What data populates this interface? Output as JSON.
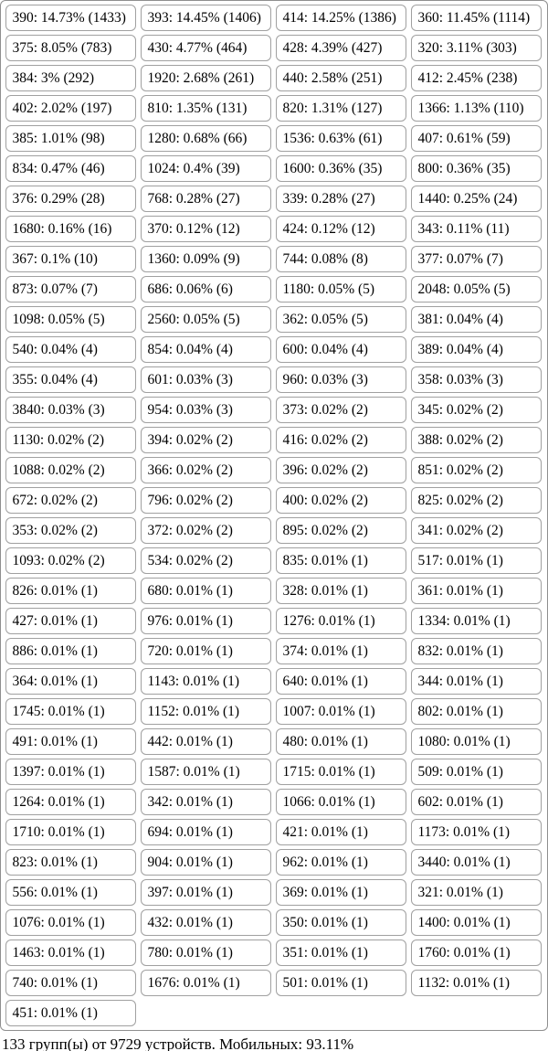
{
  "groups": {
    "cells": [
      "390: 14.73% (1433)",
      "393: 14.45% (1406)",
      "414: 14.25% (1386)",
      "360: 11.45% (1114)",
      "375: 8.05% (783)",
      "430: 4.77% (464)",
      "428: 4.39% (427)",
      "320: 3.11% (303)",
      "384: 3% (292)",
      "1920: 2.68% (261)",
      "440: 2.58% (251)",
      "412: 2.45% (238)",
      "402: 2.02% (197)",
      "810: 1.35% (131)",
      "820: 1.31% (127)",
      "1366: 1.13% (110)",
      "385: 1.01% (98)",
      "1280: 0.68% (66)",
      "1536: 0.63% (61)",
      "407: 0.61% (59)",
      "834: 0.47% (46)",
      "1024: 0.4% (39)",
      "1600: 0.36% (35)",
      "800: 0.36% (35)",
      "376: 0.29% (28)",
      "768: 0.28% (27)",
      "339: 0.28% (27)",
      "1440: 0.25% (24)",
      "1680: 0.16% (16)",
      "370: 0.12% (12)",
      "424: 0.12% (12)",
      "343: 0.11% (11)",
      "367: 0.1% (10)",
      "1360: 0.09% (9)",
      "744: 0.08% (8)",
      "377: 0.07% (7)",
      "873: 0.07% (7)",
      "686: 0.06% (6)",
      "1180: 0.05% (5)",
      "2048: 0.05% (5)",
      "1098: 0.05% (5)",
      "2560: 0.05% (5)",
      "362: 0.05% (5)",
      "381: 0.04% (4)",
      "540: 0.04% (4)",
      "854: 0.04% (4)",
      "600: 0.04% (4)",
      "389: 0.04% (4)",
      "355: 0.04% (4)",
      "601: 0.03% (3)",
      "960: 0.03% (3)",
      "358: 0.03% (3)",
      "3840: 0.03% (3)",
      "954: 0.03% (3)",
      "373: 0.02% (2)",
      "345: 0.02% (2)",
      "1130: 0.02% (2)",
      "394: 0.02% (2)",
      "416: 0.02% (2)",
      "388: 0.02% (2)",
      "1088: 0.02% (2)",
      "366: 0.02% (2)",
      "396: 0.02% (2)",
      "851: 0.02% (2)",
      "672: 0.02% (2)",
      "796: 0.02% (2)",
      "400: 0.02% (2)",
      "825: 0.02% (2)",
      "353: 0.02% (2)",
      "372: 0.02% (2)",
      "895: 0.02% (2)",
      "341: 0.02% (2)",
      "1093: 0.02% (2)",
      "534: 0.02% (2)",
      "835: 0.01% (1)",
      "517: 0.01% (1)",
      "826: 0.01% (1)",
      "680: 0.01% (1)",
      "328: 0.01% (1)",
      "361: 0.01% (1)",
      "427: 0.01% (1)",
      "976: 0.01% (1)",
      "1276: 0.01% (1)",
      "1334: 0.01% (1)",
      "886: 0.01% (1)",
      "720: 0.01% (1)",
      "374: 0.01% (1)",
      "832: 0.01% (1)",
      "364: 0.01% (1)",
      "1143: 0.01% (1)",
      "640: 0.01% (1)",
      "344: 0.01% (1)",
      "1745: 0.01% (1)",
      "1152: 0.01% (1)",
      "1007: 0.01% (1)",
      "802: 0.01% (1)",
      "491: 0.01% (1)",
      "442: 0.01% (1)",
      "480: 0.01% (1)",
      "1080: 0.01% (1)",
      "1397: 0.01% (1)",
      "1587: 0.01% (1)",
      "1715: 0.01% (1)",
      "509: 0.01% (1)",
      "1264: 0.01% (1)",
      "342: 0.01% (1)",
      "1066: 0.01% (1)",
      "602: 0.01% (1)",
      "1710: 0.01% (1)",
      "694: 0.01% (1)",
      "421: 0.01% (1)",
      "1173: 0.01% (1)",
      "823: 0.01% (1)",
      "904: 0.01% (1)",
      "962: 0.01% (1)",
      "3440: 0.01% (1)",
      "556: 0.01% (1)",
      "397: 0.01% (1)",
      "369: 0.01% (1)",
      "321: 0.01% (1)",
      "1076: 0.01% (1)",
      "432: 0.01% (1)",
      "350: 0.01% (1)",
      "1400: 0.01% (1)",
      "1463: 0.01% (1)",
      "780: 0.01% (1)",
      "351: 0.01% (1)",
      "1760: 0.01% (1)",
      "740: 0.01% (1)",
      "1676: 0.01% (1)",
      "501: 0.01% (1)",
      "1132: 0.01% (1)",
      "451: 0.01% (1)"
    ]
  },
  "footer": {
    "text": "133 групп(ы) от 9729 устройств. Мобильных: 93.11%"
  },
  "colors": {
    "background": "#ffffff",
    "text": "#000000",
    "container_border": "#8f8f8f",
    "cell_border": "#a0a0a0"
  }
}
